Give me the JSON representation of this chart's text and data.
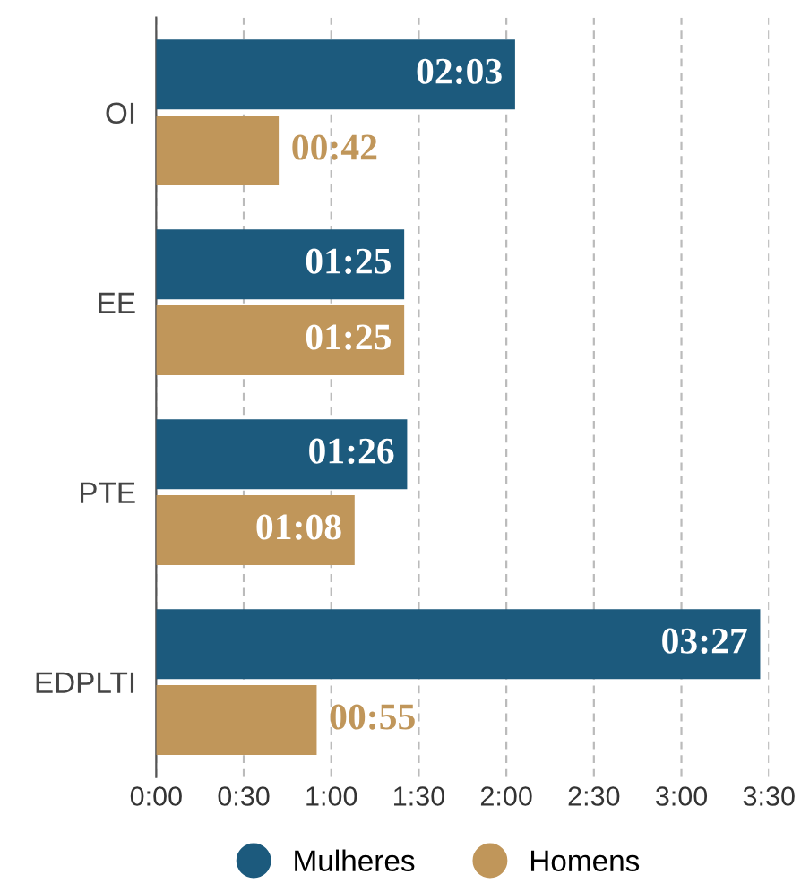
{
  "chart_data": {
    "type": "bar",
    "orientation": "horizontal",
    "categories": [
      "OI",
      "EE",
      "PTE",
      "EDPLTI"
    ],
    "series": [
      {
        "name": "Mulheres",
        "color": "#1c5a7d",
        "values": [
          123,
          85,
          86,
          207
        ],
        "value_labels": [
          "02:03",
          "01:25",
          "01:26",
          "03:27"
        ]
      },
      {
        "name": "Homens",
        "color": "#c0965a",
        "values": [
          42,
          85,
          68,
          55
        ],
        "value_labels": [
          "00:42",
          "01:25",
          "01:08",
          "00:55"
        ]
      }
    ],
    "xlim": [
      0,
      210
    ],
    "xticks": [
      {
        "value": 0,
        "label": "0:00"
      },
      {
        "value": 30,
        "label": "0:30"
      },
      {
        "value": 60,
        "label": "1:00"
      },
      {
        "value": 90,
        "label": "1:30"
      },
      {
        "value": 120,
        "label": "2:00"
      },
      {
        "value": 150,
        "label": "2:30"
      },
      {
        "value": 180,
        "label": "3:00"
      },
      {
        "value": 210,
        "label": "3:30"
      }
    ],
    "grid": "x",
    "legend": "bottom"
  }
}
